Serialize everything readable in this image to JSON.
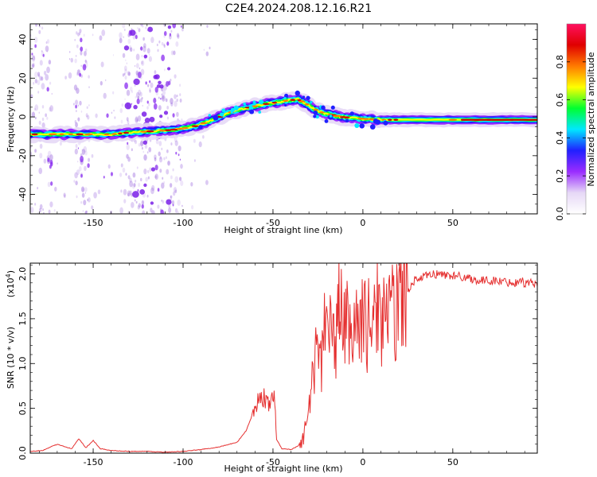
{
  "title": "C2E4.2024.208.12.16.R21",
  "colors": {
    "snr_line": "#e53030",
    "scatter": "#a070e0",
    "ridge_core": "#cc0000"
  },
  "colorbar": {
    "label": "Normalized spectral amplitude",
    "range": [
      0,
      1
    ],
    "ticks": [
      0.0,
      0.2,
      0.4,
      0.6,
      0.8
    ],
    "tick_labels": [
      "0.0",
      "0.2",
      "0.4",
      "0.6",
      "0.8"
    ],
    "stops": [
      "#ffffff",
      "#e6d8f6",
      "#9a2cff",
      "#2020ff",
      "#00e8ff",
      "#00ff30",
      "#ffff00",
      "#ff7a00",
      "#e00000",
      "#ff1060"
    ]
  },
  "chart_data": [
    {
      "type": "heatmap",
      "xlabel": "Height of straight line (km)",
      "ylabel": "Frequency (Hz)",
      "xlim": [
        -185,
        97
      ],
      "ylim": [
        -50,
        48
      ],
      "xticks": [
        -150,
        -100,
        -50,
        0,
        50
      ],
      "xtick_labels": [
        "-150",
        "-100",
        "-50",
        "0",
        "50"
      ],
      "yticks": [
        -40,
        -20,
        0,
        20,
        40
      ],
      "ytick_labels": [
        "-40",
        "-20",
        "0",
        "20",
        "40"
      ],
      "ridge": {
        "x": [
          -185,
          -170,
          -155,
          -140,
          -130,
          -120,
          -110,
          -100,
          -92,
          -85,
          -75,
          -65,
          -55,
          -48,
          -42,
          -36,
          -32,
          -27,
          -22,
          -17,
          -12,
          -6,
          0,
          10,
          20,
          40,
          60,
          80,
          97
        ],
        "y": [
          -9,
          -9,
          -9,
          -9,
          -8,
          -7.5,
          -7,
          -6,
          -4.5,
          -2,
          2,
          4.5,
          6.5,
          7.5,
          8.5,
          9,
          7,
          4,
          2,
          1,
          0,
          -0.5,
          -1,
          -1.5,
          -1.5,
          -1.5,
          -1.5,
          -1.5,
          -1.5
        ]
      }
    },
    {
      "type": "line",
      "xlabel": "Height of straight line (km)",
      "ylabel": "SNR (10 * v/v)",
      "y_scale_label": "(x10^4)",
      "y_multiplier": 10000,
      "xlim": [
        -185,
        97
      ],
      "ylim": [
        0,
        2.12
      ],
      "xticks": [
        -150,
        -100,
        -50,
        0,
        50
      ],
      "xtick_labels": [
        "-150",
        "-100",
        "-50",
        "0",
        "50"
      ],
      "yticks": [
        0,
        0.5,
        1,
        1.5,
        2
      ],
      "ytick_labels": [
        "0.0",
        "0.5",
        "1.0",
        "1.5",
        "2.0"
      ],
      "series": [
        {
          "x": [
            -185,
            -178,
            -170,
            -162,
            -158,
            -154,
            -150,
            -146,
            -140,
            -130,
            -120,
            -110,
            -100,
            -90,
            -80,
            -70,
            -65,
            -61,
            -58,
            -55,
            -52,
            -49,
            -48,
            -45,
            -40,
            -36,
            -33,
            -31,
            -29,
            -27,
            -25,
            -23,
            -21,
            -19,
            -17,
            -15,
            -14,
            -13,
            -12,
            -10,
            -8,
            -6,
            -4,
            -2,
            0,
            2,
            4,
            6,
            8,
            10,
            12,
            14,
            16,
            18,
            20,
            22,
            25,
            28,
            32,
            36,
            40,
            45,
            50,
            55,
            60,
            65,
            70,
            75,
            80,
            85,
            88,
            90,
            93,
            97
          ],
          "y": [
            0.02,
            0.03,
            0.1,
            0.05,
            0.16,
            0.06,
            0.14,
            0.05,
            0.03,
            0.02,
            0.02,
            0.01,
            0.02,
            0.04,
            0.07,
            0.12,
            0.25,
            0.45,
            0.6,
            0.62,
            0.55,
            0.6,
            0.15,
            0.05,
            0.04,
            0.08,
            0.2,
            0.35,
            0.7,
            0.95,
            1.3,
            1.0,
            1.5,
            1.2,
            1.55,
            1.05,
            2.1,
            1.4,
            1.6,
            1.35,
            1.55,
            1.2,
            1.6,
            1.3,
            1.65,
            1.3,
            1.6,
            1.35,
            1.7,
            1.4,
            1.75,
            1.45,
            1.6,
            1.5,
            1.85,
            1.72,
            1.8,
            1.92,
            1.95,
            1.98,
            2.0,
            1.99,
            1.98,
            1.97,
            1.95,
            1.92,
            1.93,
            1.92,
            1.91,
            1.9,
            1.95,
            1.88,
            1.92,
            1.86
          ]
        }
      ]
    }
  ]
}
